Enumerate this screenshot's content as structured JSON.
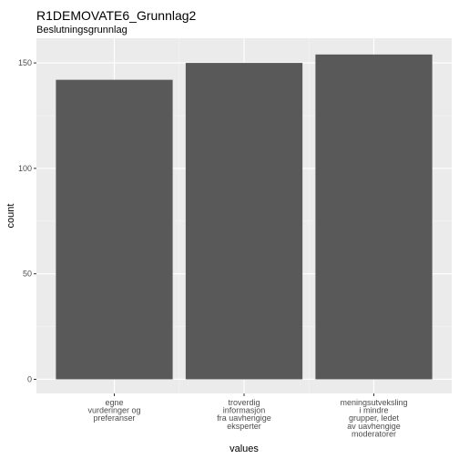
{
  "chart_data": {
    "type": "bar",
    "title": "R1DEMOVATE6_Grunnlag2",
    "subtitle": "Beslutningsgrunnlag",
    "xlabel": "values",
    "ylabel": "count",
    "categories": [
      [
        "egne",
        "vurderinger og",
        "preferanser"
      ],
      [
        "troverdig",
        "informasjon",
        "fra uavhengige",
        "eksperter"
      ],
      [
        "meningsutveksling",
        "i mindre",
        "grupper, ledet",
        "av uavhengige",
        "moderatorer"
      ]
    ],
    "values": [
      142,
      150,
      154
    ],
    "ylim": [
      -6.7,
      161.7
    ],
    "yticks": [
      0,
      50,
      100,
      150
    ],
    "grid": true,
    "colors": {
      "bar": "#595959",
      "panel": "#ebebeb",
      "grid_major": "#ffffff",
      "grid_minor": "#f5f5f5"
    }
  }
}
